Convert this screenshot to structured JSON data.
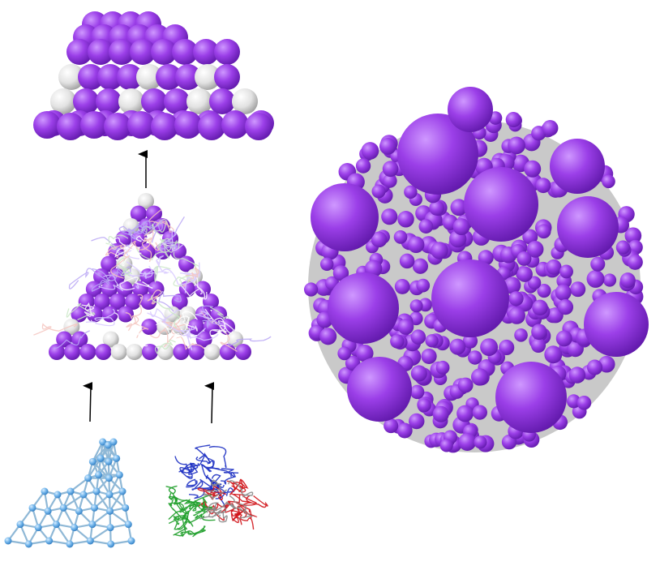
{
  "figure": {
    "panels": [
      {
        "id": "cross-section",
        "icon": "sphere-cross-section-icon"
      },
      {
        "id": "tetrahedral-assembly",
        "icon": "sphere-tetrahedron-icon"
      },
      {
        "id": "lattice-network",
        "icon": "lattice-network-icon"
      },
      {
        "id": "protein-ribbons",
        "icon": "protein-ribbon-icon"
      },
      {
        "id": "icosahedral-cluster",
        "icon": "icosahedral-cluster-icon"
      }
    ],
    "arrows": [
      {
        "from": "lattice-network",
        "to": "tetrahedral-assembly"
      },
      {
        "from": "protein-ribbons",
        "to": "tetrahedral-assembly"
      },
      {
        "from": "tetrahedral-assembly",
        "to": "cross-section"
      }
    ]
  },
  "colors": {
    "primary_sphere": "#9b3fe8",
    "primary_sphere_highlight": "#c88bff",
    "primary_sphere_shadow": "#5e17a8",
    "secondary_sphere": "#e6e6e6",
    "secondary_sphere_shadow": "#9a9a9a",
    "lattice_node": "#6fb3ea",
    "lattice_edge": "#8fb8d6",
    "ribbon_blue": "#1c2fc2",
    "ribbon_red": "#d0141a",
    "ribbon_green": "#1f9e2a",
    "arrow": "#000000"
  }
}
